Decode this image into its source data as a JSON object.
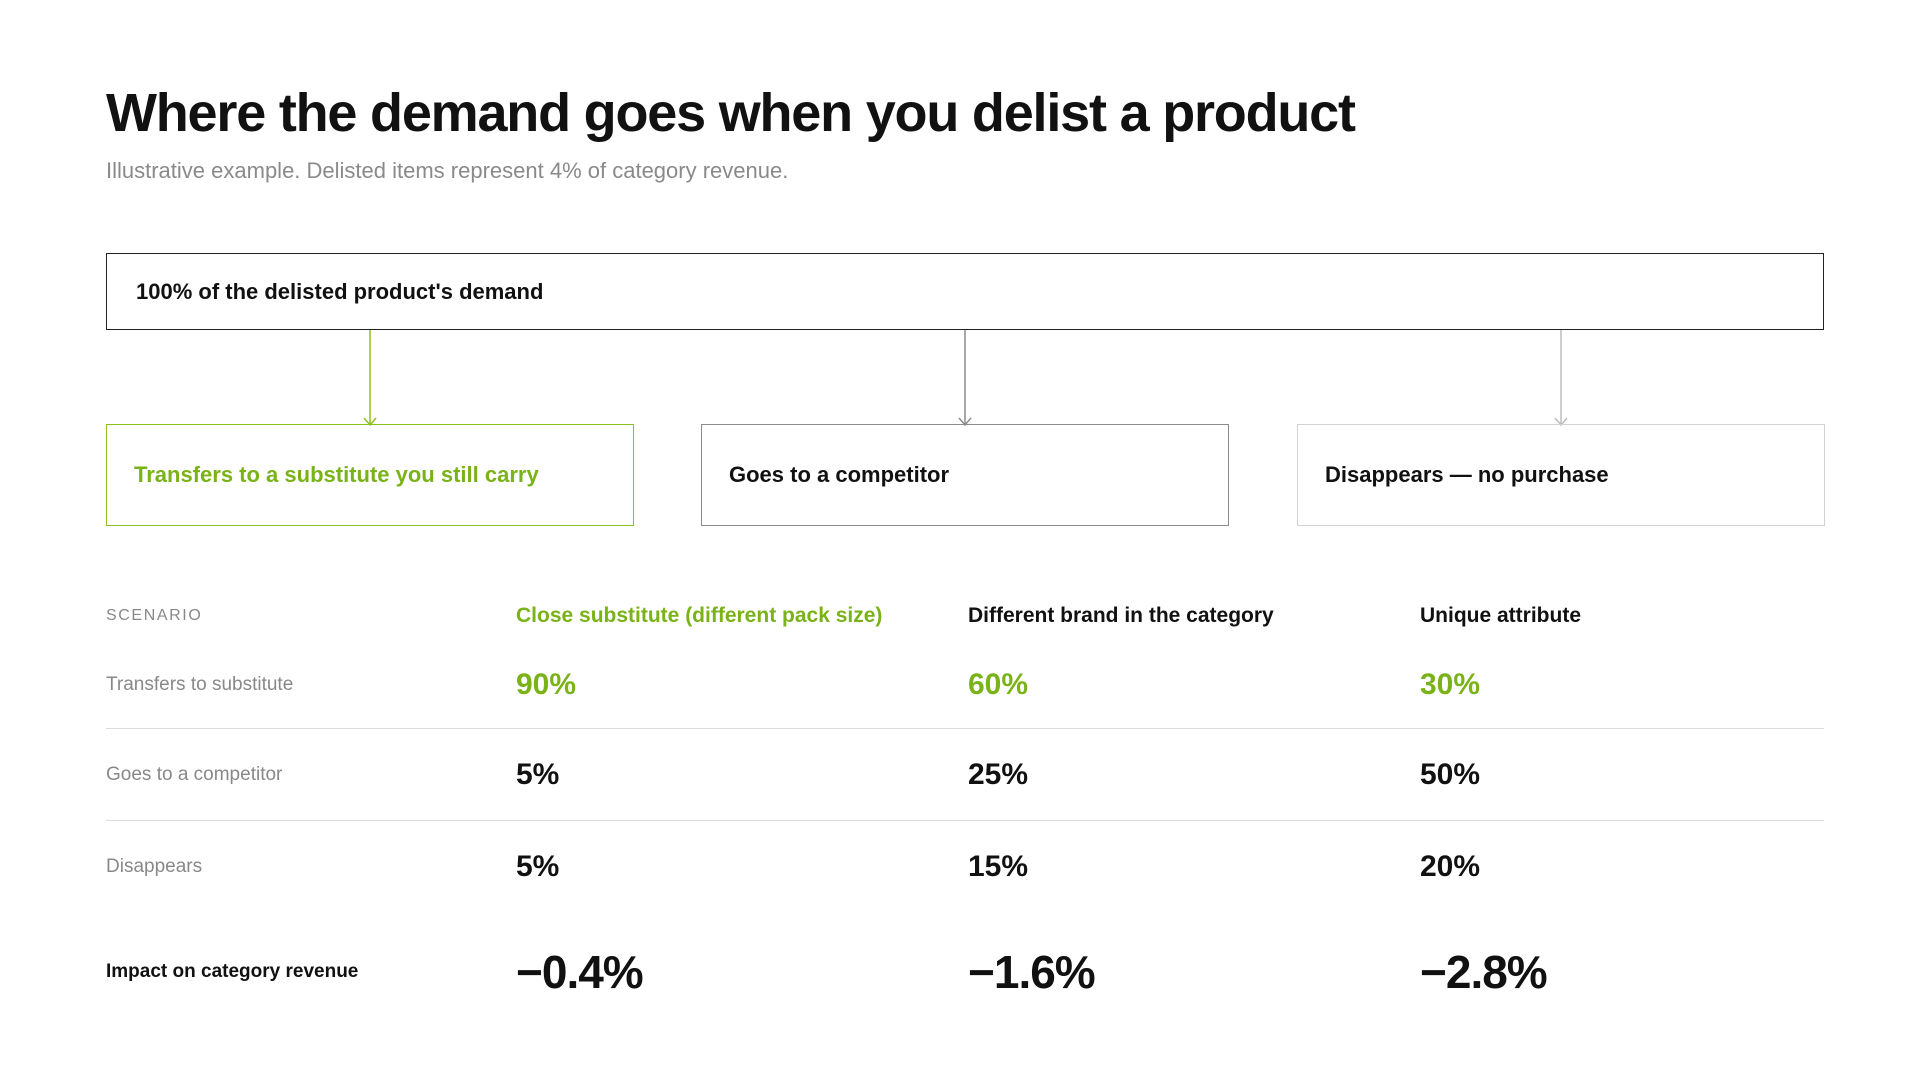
{
  "title": "Where the demand goes when you delist a product",
  "subtitle": "Illustrative example. Delisted items represent 4% of category revenue.",
  "colors": {
    "accent": "#7ab317",
    "text": "#111111",
    "muted": "#888888"
  },
  "flow": {
    "root": "100% of the delisted product's demand",
    "branches": [
      {
        "label": "Transfers to a substitute you still carry"
      },
      {
        "label": "Goes to a competitor"
      },
      {
        "label": "Disappears — no purchase"
      }
    ]
  },
  "table": {
    "header_label": "SCENARIO",
    "scenarios": [
      "Close substitute (different pack size)",
      "Different brand in the category",
      "Unique attribute"
    ],
    "rows": [
      {
        "label": "Transfers to substitute",
        "values": [
          "90%",
          "60%",
          "30%"
        ]
      },
      {
        "label": "Goes to a competitor",
        "values": [
          "5%",
          "25%",
          "50%"
        ]
      },
      {
        "label": "Disappears",
        "values": [
          "5%",
          "15%",
          "20%"
        ]
      }
    ],
    "impact": {
      "label": "Impact on category revenue",
      "values": [
        "−0.4%",
        "−1.6%",
        "−2.8%"
      ]
    }
  }
}
